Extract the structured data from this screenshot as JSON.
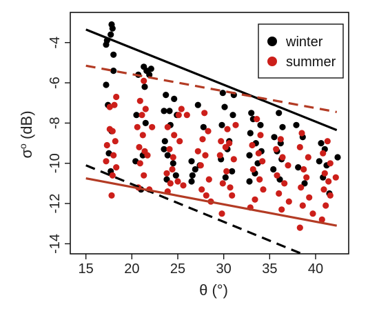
{
  "chart_data": {
    "type": "scatter",
    "xlabel": "θ (°)",
    "ylabel_base": "σ",
    "ylabel_sup": "o",
    "ylabel_rest": " (dB)",
    "xlim": [
      13.3,
      43.6
    ],
    "ylim": [
      -14.5,
      -2.5
    ],
    "xticks": [
      15,
      20,
      25,
      30,
      35,
      40
    ],
    "yticks": [
      -14,
      -12,
      -10,
      -8,
      -6,
      -4
    ],
    "grid": false,
    "legend_position": "top-right",
    "colors": {
      "winter": "#000000",
      "summer": "#cc1f1a",
      "summer_line": "#b33b24"
    },
    "series": [
      {
        "name": "winter",
        "color": "#000000",
        "points": [
          [
            17.8,
            -3.1
          ],
          [
            17.9,
            -3.3
          ],
          [
            17.7,
            -3.6
          ],
          [
            17.3,
            -3.9
          ],
          [
            17.2,
            -4.1
          ],
          [
            18.0,
            -4.6
          ],
          [
            18.0,
            -5.4
          ],
          [
            17.2,
            -6.1
          ],
          [
            17.4,
            -7.1
          ],
          [
            17.8,
            -8.4
          ],
          [
            17.5,
            -9.5
          ],
          [
            17.7,
            -10.4
          ],
          [
            21.3,
            -5.2
          ],
          [
            21.6,
            -5.4
          ],
          [
            22.1,
            -5.3
          ],
          [
            21.9,
            -5.6
          ],
          [
            20.7,
            -5.6
          ],
          [
            21.4,
            -6.2
          ],
          [
            20.5,
            -7.6
          ],
          [
            21.5,
            -8.0
          ],
          [
            21.2,
            -9.6
          ],
          [
            20.4,
            -9.9
          ],
          [
            21.0,
            -11.3
          ],
          [
            23.7,
            -6.6
          ],
          [
            24.6,
            -6.8
          ],
          [
            23.5,
            -7.4
          ],
          [
            24.1,
            -7.4
          ],
          [
            24.9,
            -7.6
          ],
          [
            24.2,
            -8.1
          ],
          [
            23.6,
            -8.9
          ],
          [
            23.5,
            -9.3
          ],
          [
            23.9,
            -9.6
          ],
          [
            24.5,
            -10.0
          ],
          [
            24.8,
            -10.6
          ],
          [
            23.8,
            -10.8
          ],
          [
            27.2,
            -7.1
          ],
          [
            27.8,
            -8.2
          ],
          [
            26.5,
            -9.9
          ],
          [
            26.9,
            -10.3
          ],
          [
            26.6,
            -10.6
          ],
          [
            26.5,
            -10.9
          ],
          [
            27.4,
            -10.1
          ],
          [
            29.9,
            -6.5
          ],
          [
            30.1,
            -7.2
          ],
          [
            31.0,
            -7.6
          ],
          [
            31.1,
            -6.6
          ],
          [
            29.8,
            -8.1
          ],
          [
            30.6,
            -8.9
          ],
          [
            30.4,
            -9.3
          ],
          [
            29.7,
            -9.8
          ],
          [
            30.9,
            -10.4
          ],
          [
            30.2,
            -10.7
          ],
          [
            33.0,
            -7.5
          ],
          [
            33.2,
            -7.8
          ],
          [
            34.0,
            -8.1
          ],
          [
            32.9,
            -8.5
          ],
          [
            33.5,
            -9.0
          ],
          [
            34.1,
            -9.4
          ],
          [
            32.8,
            -9.6
          ],
          [
            33.7,
            -10.0
          ],
          [
            33.4,
            -10.5
          ],
          [
            32.8,
            -10.9
          ],
          [
            36.0,
            -7.5
          ],
          [
            36.4,
            -8.2
          ],
          [
            35.5,
            -8.7
          ],
          [
            36.2,
            -9.0
          ],
          [
            35.8,
            -9.4
          ],
          [
            36.3,
            -9.8
          ],
          [
            35.4,
            -10.3
          ],
          [
            36.1,
            -10.8
          ],
          [
            37.9,
            -8.1
          ],
          [
            38.6,
            -8.7
          ],
          [
            38.1,
            -10.2
          ],
          [
            38.8,
            -11.0
          ],
          [
            40.6,
            -9.0
          ],
          [
            41.0,
            -9.3
          ],
          [
            40.4,
            -9.9
          ],
          [
            41.2,
            -10.1
          ],
          [
            40.8,
            -10.7
          ],
          [
            41.5,
            -11.5
          ],
          [
            42.4,
            -9.7
          ]
        ]
      },
      {
        "name": "summer",
        "color": "#cc1f1a",
        "points": [
          [
            18.3,
            -6.7
          ],
          [
            18.1,
            -7.1
          ],
          [
            17.9,
            -8.4
          ],
          [
            18.2,
            -8.9
          ],
          [
            17.6,
            -7.2
          ],
          [
            17.3,
            -9.1
          ],
          [
            17.2,
            -9.9
          ],
          [
            17.6,
            -8.3
          ],
          [
            18.0,
            -9.6
          ],
          [
            18.3,
            -10.2
          ],
          [
            17.9,
            -10.6
          ],
          [
            17.8,
            -11.6
          ],
          [
            21.3,
            -5.9
          ],
          [
            20.9,
            -6.9
          ],
          [
            21.5,
            -7.3
          ],
          [
            21.1,
            -7.6
          ],
          [
            20.6,
            -8.2
          ],
          [
            21.2,
            -8.6
          ],
          [
            20.8,
            -9.2
          ],
          [
            21.4,
            -9.4
          ],
          [
            20.9,
            -10.0
          ],
          [
            21.7,
            -9.6
          ],
          [
            21.3,
            -10.6
          ],
          [
            21.9,
            -11.3
          ],
          [
            20.7,
            -11.2
          ],
          [
            22.2,
            -8.2
          ],
          [
            25.1,
            -7.6
          ],
          [
            25.4,
            -7.3
          ],
          [
            23.9,
            -8.2
          ],
          [
            24.6,
            -8.6
          ],
          [
            25.2,
            -8.9
          ],
          [
            24.1,
            -9.3
          ],
          [
            24.5,
            -9.7
          ],
          [
            23.8,
            -10.5
          ],
          [
            24.4,
            -10.3
          ],
          [
            25.0,
            -10.9
          ],
          [
            24.2,
            -11.0
          ],
          [
            23.9,
            -11.4
          ],
          [
            25.6,
            -11.1
          ],
          [
            26.0,
            -7.6
          ],
          [
            27.9,
            -7.5
          ],
          [
            28.3,
            -8.4
          ],
          [
            27.7,
            -8.8
          ],
          [
            28.0,
            -9.6
          ],
          [
            27.5,
            -10.1
          ],
          [
            28.4,
            -10.8
          ],
          [
            27.6,
            -11.3
          ],
          [
            28.1,
            -11.6
          ],
          [
            28.6,
            -11.9
          ],
          [
            27.2,
            -9.4
          ],
          [
            29.7,
            -8.9
          ],
          [
            30.2,
            -9.2
          ],
          [
            30.6,
            -9.0
          ],
          [
            29.6,
            -9.6
          ],
          [
            31.1,
            -9.8
          ],
          [
            30.3,
            -10.4
          ],
          [
            29.9,
            -11.0
          ],
          [
            30.7,
            -11.2
          ],
          [
            30.9,
            -11.6
          ],
          [
            29.8,
            -12.5
          ],
          [
            31.3,
            -8.1
          ],
          [
            30.4,
            -8.3
          ],
          [
            33.6,
            -7.8
          ],
          [
            34.0,
            -8.6
          ],
          [
            33.1,
            -9.1
          ],
          [
            33.8,
            -9.5
          ],
          [
            34.2,
            -9.9
          ],
          [
            33.2,
            -10.3
          ],
          [
            33.9,
            -10.8
          ],
          [
            34.3,
            -11.3
          ],
          [
            33.4,
            -11.8
          ],
          [
            32.9,
            -12.2
          ],
          [
            36.2,
            -8.8
          ],
          [
            35.7,
            -9.3
          ],
          [
            36.4,
            -9.7
          ],
          [
            37.0,
            -10.1
          ],
          [
            35.8,
            -10.6
          ],
          [
            36.6,
            -11.0
          ],
          [
            36.0,
            -11.5
          ],
          [
            37.1,
            -11.9
          ],
          [
            36.3,
            -12.3
          ],
          [
            38.5,
            -8.5
          ],
          [
            38.3,
            -9.2
          ],
          [
            39.2,
            -9.7
          ],
          [
            38.7,
            -10.3
          ],
          [
            39.0,
            -10.7
          ],
          [
            38.4,
            -11.2
          ],
          [
            39.3,
            -11.7
          ],
          [
            38.6,
            -12.1
          ],
          [
            39.7,
            -12.5
          ],
          [
            38.3,
            -13.2
          ],
          [
            41.3,
            -8.9
          ],
          [
            40.8,
            -9.5
          ],
          [
            41.6,
            -10.0
          ],
          [
            41.0,
            -10.5
          ],
          [
            41.4,
            -10.9
          ],
          [
            40.9,
            -11.3
          ],
          [
            41.6,
            -11.6
          ],
          [
            41.1,
            -12.1
          ],
          [
            40.7,
            -12.8
          ],
          [
            42.2,
            -10.7
          ]
        ]
      }
    ],
    "fit_lines": [
      {
        "series": "winter",
        "style": "solid",
        "color": "#000000",
        "x": [
          15,
          42.3
        ],
        "y": [
          -3.35,
          -8.35
        ]
      },
      {
        "series": "winter",
        "style": "dashed",
        "color": "#000000",
        "x": [
          15,
          38.5
        ],
        "y": [
          -10.1,
          -14.5
        ]
      },
      {
        "series": "summer",
        "style": "solid",
        "color": "#b33b24",
        "x": [
          15,
          42.3
        ],
        "y": [
          -10.75,
          -13.1
        ]
      },
      {
        "series": "summer",
        "style": "dashed",
        "color": "#b33b24",
        "x": [
          15,
          42.3
        ],
        "y": [
          -5.15,
          -7.45
        ]
      }
    ],
    "legend": [
      {
        "label": "winter",
        "color": "#000000"
      },
      {
        "label": "summer",
        "color": "#cc1f1a"
      }
    ]
  }
}
